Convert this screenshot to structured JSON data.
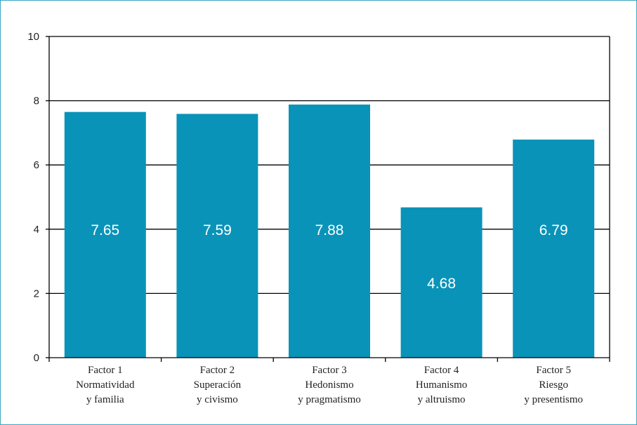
{
  "chart_data": {
    "type": "bar",
    "categories": [
      [
        "Factor 1",
        "Normatividad",
        "y familia"
      ],
      [
        "Factor 2",
        "Superación",
        "y civismo"
      ],
      [
        "Factor 3",
        "Hedonismo",
        "y pragmatismo"
      ],
      [
        "Factor 4",
        "Humanismo",
        "y altruismo"
      ],
      [
        "Factor 5",
        "Riesgo",
        "y presentismo"
      ]
    ],
    "values": [
      7.65,
      7.59,
      7.88,
      4.68,
      6.79
    ],
    "data_labels": [
      "7.65",
      "7.59",
      "7.88",
      "4.68",
      "6.79"
    ],
    "ylim": [
      0,
      10
    ],
    "yticks": [
      0,
      2,
      4,
      6,
      8,
      10
    ],
    "ytick_labels": [
      "0",
      "2",
      "4",
      "6",
      "8",
      "10"
    ],
    "grid": true,
    "title": "",
    "xlabel": "",
    "ylabel": ""
  },
  "colors": {
    "bar": "#0a93b8",
    "frame": "#3aa6c4",
    "grid": "#000000"
  }
}
